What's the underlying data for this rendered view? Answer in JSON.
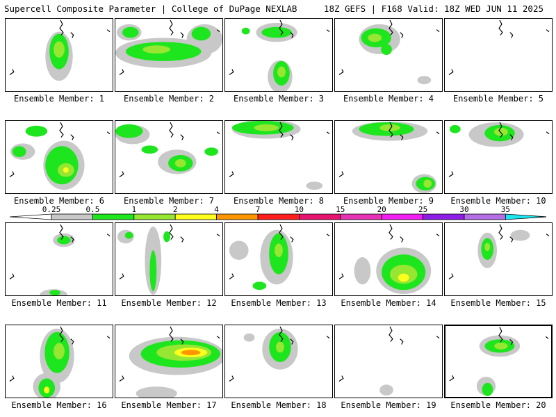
{
  "header": {
    "title": "Supercell Composite Parameter | College of DuPage NEXLAB",
    "run_info": "18Z GEFS | F168 Valid: 18Z WED JUN 11 2025"
  },
  "caption_prefix": "Ensemble Member:",
  "members": [
    {
      "id": 1,
      "caption": "Ensemble Member: 1"
    },
    {
      "id": 2,
      "caption": "Ensemble Member: 2"
    },
    {
      "id": 3,
      "caption": "Ensemble Member: 3"
    },
    {
      "id": 4,
      "caption": "Ensemble Member: 4"
    },
    {
      "id": 5,
      "caption": "Ensemble Member: 5"
    },
    {
      "id": 6,
      "caption": "Ensemble Member: 6"
    },
    {
      "id": 7,
      "caption": "Ensemble Member: 7"
    },
    {
      "id": 8,
      "caption": "Ensemble Member: 8"
    },
    {
      "id": 9,
      "caption": "Ensemble Member: 9"
    },
    {
      "id": 10,
      "caption": "Ensemble Member: 10"
    },
    {
      "id": 11,
      "caption": "Ensemble Member: 11"
    },
    {
      "id": 12,
      "caption": "Ensemble Member: 12"
    },
    {
      "id": 13,
      "caption": "Ensemble Member: 13"
    },
    {
      "id": 14,
      "caption": "Ensemble Member: 14"
    },
    {
      "id": 15,
      "caption": "Ensemble Member: 15"
    },
    {
      "id": 16,
      "caption": "Ensemble Member: 16"
    },
    {
      "id": 17,
      "caption": "Ensemble Member: 17"
    },
    {
      "id": 18,
      "caption": "Ensemble Member: 18"
    },
    {
      "id": 19,
      "caption": "Ensemble Member: 19"
    },
    {
      "id": 20,
      "caption": "Ensemble Member: 20",
      "selected": true
    }
  ],
  "legend": {
    "tick_labels": [
      "0.25",
      "0.5",
      "1",
      "2",
      "4",
      "7",
      "10",
      "15",
      "20",
      "25",
      "30",
      "35"
    ],
    "colors": [
      "#c8c8c8",
      "#1ee61e",
      "#96e632",
      "#ffff1e",
      "#ff9600",
      "#ff1e1e",
      "#e6146e",
      "#e632b4",
      "#f01ef0",
      "#8c1ee6",
      "#b46ee6",
      "#1ee6f0"
    ]
  }
}
